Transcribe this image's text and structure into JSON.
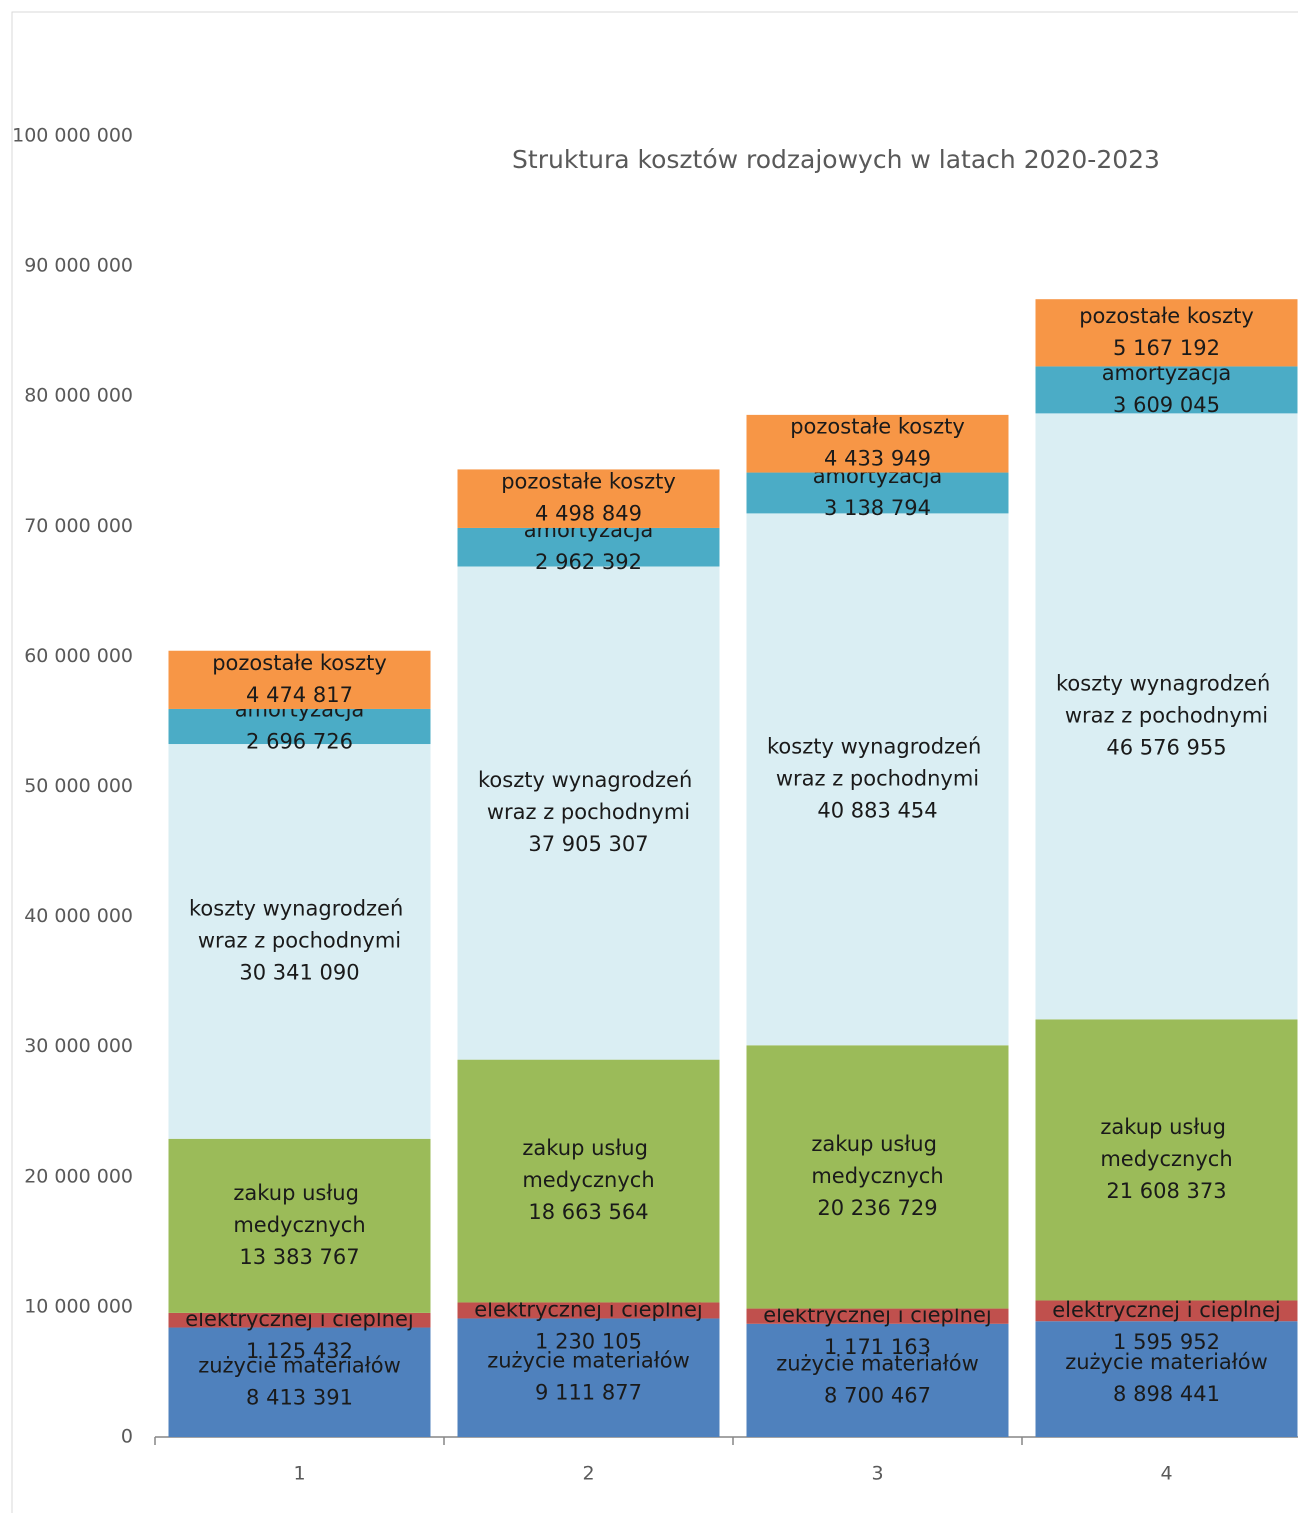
{
  "chart_data": {
    "type": "stacked_bar",
    "title": "Struktura kosztów rodzajowych w latach 2020-2023",
    "categories": [
      "1",
      "2",
      "3",
      "4"
    ],
    "series": [
      {
        "name": "zużycie materiałów",
        "color": "#4f81bd",
        "values": [
          8413391,
          9111877,
          8700467,
          8898441
        ],
        "value_labels": [
          "8 413 391",
          "9 111 877",
          "8 700 467",
          "8 898 441"
        ]
      },
      {
        "name": "zużycie energii elektrycznej i cieplnej",
        "color": "#c0504d",
        "values": [
          1125432,
          1230105,
          1171163,
          1595952
        ],
        "value_labels": [
          "1 125 432",
          "1 230 105",
          "1 171 163",
          "1 595 952"
        ]
      },
      {
        "name": "zakup usług medycznych",
        "color": "#9bbb59",
        "values": [
          13383767,
          18663564,
          20236729,
          21608373
        ],
        "value_labels": [
          "13 383 767",
          "18 663 564",
          "20 236 729",
          "21 608 373"
        ]
      },
      {
        "name": "koszty wynagrodzeń wraz z pochodnymi",
        "color": "#daeef3",
        "values": [
          30341090,
          37905307,
          40883454,
          46576955
        ],
        "value_labels": [
          "30 341 090",
          "37 905 307",
          "40 883 454",
          "46 576 955"
        ]
      },
      {
        "name": "amortyzacja",
        "color": "#4bacc6",
        "values": [
          2696726,
          2962392,
          3138794,
          3609045
        ],
        "value_labels": [
          "2 696 726",
          "2 962 392",
          "3 138 794",
          "3 609 045"
        ]
      },
      {
        "name": "pozostałe koszty",
        "color": "#f79646",
        "values": [
          4474817,
          4498849,
          4433949,
          5167192
        ],
        "value_labels": [
          "4 474 817",
          "4 498 849",
          "4 433 949",
          "5 167 192"
        ]
      }
    ],
    "ylim": [
      0,
      100000000
    ],
    "yticks": [
      0,
      {
        "value": 10000000,
        "label": "10 000 000"
      },
      {
        "value": 20000000,
        "label": "20 000 000"
      },
      {
        "value": 30000000,
        "label": "30 000 000"
      },
      {
        "value": 40000000,
        "label": "40 000 000"
      },
      {
        "value": 50000000,
        "label": "50 000 000"
      },
      {
        "value": 60000000,
        "label": "60 000 000"
      },
      {
        "value": 70000000,
        "label": "70 000 000"
      },
      {
        "value": 80000000,
        "label": "80 000 000"
      },
      {
        "value": 90000000,
        "label": "90 000 000"
      },
      {
        "value": 100000000,
        "label": "100 000 000"
      }
    ],
    "grid": false
  }
}
